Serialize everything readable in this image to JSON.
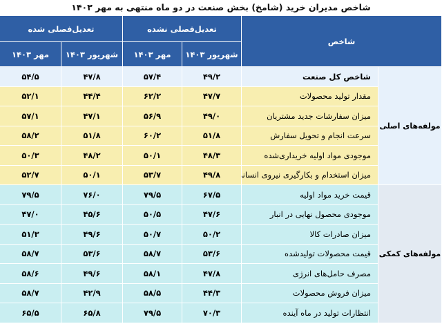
{
  "title": "شاخص مدیران خرید (شامخ) بخش صنعت در دو ماه منتهی به مهر ۱۴۰۳",
  "table": {
    "header": {
      "indicator": "شاخص",
      "groups": [
        {
          "label": "تعدیل‌فصلی نشده",
          "months": [
            "شهریور ۱۴۰۳",
            "مهر ۱۴۰۳"
          ]
        },
        {
          "label": "تعدیل‌فصلی شده",
          "months": [
            "شهریور ۱۴۰۳",
            "مهر ۱۴۰۳"
          ]
        }
      ]
    },
    "headline_row": [
      "شاخص کل صنعت",
      "۴۹/۲",
      "۵۷/۴",
      "۴۷/۸",
      "۵۴/۵"
    ],
    "sections": [
      {
        "label": "مولفه‌های اصلی",
        "rows": [
          [
            "مقدار تولید محصولات",
            "۴۷/۷",
            "۶۲/۲",
            "۴۴/۴",
            "۵۲/۱"
          ],
          [
            "میزان سفارشات جدید مشتریان",
            "۴۹/۰",
            "۵۶/۹",
            "۴۷/۱",
            "۵۷/۱"
          ],
          [
            "سرعت انجام و تحویل سفارش",
            "۵۱/۸",
            "۶۰/۲",
            "۵۱/۸",
            "۵۸/۲"
          ],
          [
            "موجودی مواد اولیه خریداری‌شده",
            "۴۸/۳",
            "۵۰/۱",
            "۴۸/۲",
            "۵۰/۳"
          ],
          [
            "میزان استخدام و بکارگیری نیروی انسانی",
            "۴۹/۸",
            "۵۳/۷",
            "۵۰/۱",
            "۵۲/۷"
          ]
        ]
      },
      {
        "label": "مولفه‌های کمکی",
        "rows": [
          [
            "قیمت خرید مواد اولیه",
            "۶۷/۵",
            "۷۹/۵",
            "۷۶/۰",
            "۷۹/۵"
          ],
          [
            "موجودی محصول نهایی در انبار",
            "۴۷/۶",
            "۵۰/۵",
            "۴۵/۶",
            "۴۷/۰"
          ],
          [
            "میزان صادرات کالا",
            "۵۰/۲",
            "۵۰/۷",
            "۴۹/۶",
            "۵۱/۳"
          ],
          [
            "قیمت محصولات تولیدشده",
            "۵۳/۶",
            "۵۸/۷",
            "۵۳/۶",
            "۵۸/۷"
          ],
          [
            "مصرف حامل‌های انرژی",
            "۴۷/۸",
            "۵۸/۱",
            "۴۹/۶",
            "۵۸/۶"
          ],
          [
            "میزان فروش محصولات",
            "۴۴/۳",
            "۵۸/۵",
            "۴۲/۹",
            "۵۸/۷"
          ],
          [
            "انتظارات تولید در ماه آینده",
            "۷۰/۳",
            "۷۹/۵",
            "۶۵/۸",
            "۶۵/۵"
          ]
        ]
      }
    ]
  }
}
